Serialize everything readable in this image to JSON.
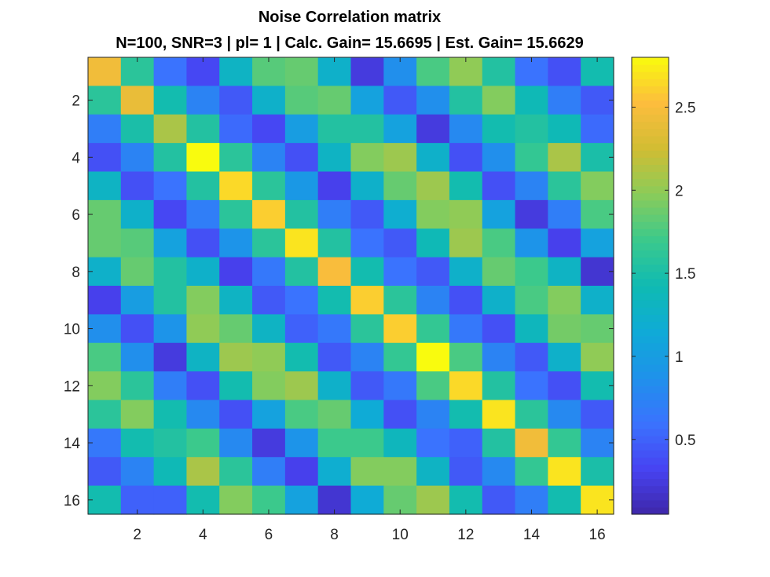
{
  "chart_data": {
    "type": "heatmap",
    "title": "Noise Correlation matrix",
    "subtitle": "N=100, SNR=3 | pl= 1 | Calc. Gain= 15.6695 | Est. Gain= 15.6629",
    "xlabel": "",
    "ylabel": "",
    "rows": 16,
    "cols": 16,
    "x_ticks": [
      "2",
      "4",
      "6",
      "8",
      "10",
      "12",
      "14",
      "16"
    ],
    "y_ticks": [
      "2",
      "4",
      "6",
      "8",
      "10",
      "12",
      "14",
      "16"
    ],
    "colorbar": {
      "range": [
        0.05,
        2.8
      ],
      "ticks": [
        "0.5",
        "1",
        "1.5",
        "2",
        "2.5"
      ],
      "colormap": "parula"
    },
    "values": [
      [
        2.45,
        1.6,
        0.6,
        0.35,
        1.3,
        1.8,
        1.85,
        1.25,
        0.25,
        0.85,
        1.75,
        2.0,
        1.55,
        0.6,
        0.4,
        1.45
      ],
      [
        1.6,
        2.4,
        1.45,
        0.75,
        0.45,
        1.25,
        1.8,
        1.85,
        1.05,
        0.45,
        0.85,
        1.55,
        1.95,
        1.4,
        0.7,
        0.45
      ],
      [
        0.7,
        1.5,
        2.1,
        1.55,
        0.55,
        0.35,
        1.0,
        1.55,
        1.55,
        1.05,
        0.25,
        0.8,
        1.45,
        1.55,
        1.4,
        0.55
      ],
      [
        0.4,
        0.75,
        1.55,
        2.8,
        1.6,
        0.75,
        0.4,
        1.3,
        1.95,
        2.05,
        1.25,
        0.4,
        0.85,
        1.65,
        2.1,
        1.5
      ],
      [
        1.3,
        0.4,
        0.6,
        1.55,
        2.65,
        1.6,
        0.95,
        0.3,
        1.25,
        1.85,
        2.05,
        1.45,
        0.4,
        0.75,
        1.6,
        1.95
      ],
      [
        1.85,
        1.25,
        0.35,
        0.7,
        1.6,
        2.6,
        1.55,
        0.7,
        0.45,
        1.2,
        1.95,
        2.0,
        1.05,
        0.25,
        0.7,
        1.75
      ],
      [
        1.85,
        1.8,
        1.05,
        0.4,
        0.9,
        1.6,
        2.7,
        1.55,
        0.6,
        0.45,
        1.4,
        2.05,
        1.75,
        0.9,
        0.3,
        1.05
      ],
      [
        1.25,
        1.85,
        1.55,
        1.25,
        0.3,
        0.65,
        1.55,
        2.5,
        1.45,
        0.6,
        0.45,
        1.25,
        1.85,
        1.7,
        1.3,
        0.2
      ],
      [
        0.3,
        1.0,
        1.55,
        1.95,
        1.3,
        0.45,
        0.6,
        1.45,
        2.6,
        1.6,
        0.75,
        0.4,
        1.25,
        1.75,
        1.95,
        1.25
      ],
      [
        0.85,
        0.4,
        0.9,
        2.0,
        1.85,
        1.3,
        0.5,
        0.65,
        1.6,
        2.6,
        1.65,
        0.65,
        0.4,
        1.35,
        1.9,
        1.85
      ],
      [
        1.75,
        0.85,
        0.25,
        1.3,
        2.05,
        2.0,
        1.45,
        0.45,
        0.75,
        1.65,
        2.8,
        1.75,
        0.75,
        0.45,
        1.25,
        2.0
      ],
      [
        1.95,
        1.6,
        0.7,
        0.4,
        1.45,
        1.95,
        2.05,
        1.25,
        0.45,
        0.65,
        1.75,
        2.65,
        1.55,
        0.6,
        0.4,
        1.45
      ],
      [
        1.6,
        1.95,
        1.45,
        0.8,
        0.4,
        1.05,
        1.75,
        1.85,
        1.15,
        0.4,
        0.75,
        1.45,
        2.7,
        1.6,
        0.8,
        0.45
      ],
      [
        0.65,
        1.45,
        1.55,
        1.7,
        0.8,
        0.25,
        0.9,
        1.7,
        1.7,
        1.35,
        0.6,
        0.5,
        1.55,
        2.45,
        1.65,
        0.75
      ],
      [
        0.45,
        0.75,
        1.4,
        2.1,
        1.6,
        0.7,
        0.3,
        1.2,
        1.95,
        1.95,
        1.3,
        0.45,
        0.8,
        1.65,
        2.7,
        1.5
      ],
      [
        1.45,
        0.5,
        0.5,
        1.45,
        1.95,
        1.7,
        1.05,
        0.2,
        1.15,
        1.85,
        2.05,
        1.45,
        0.45,
        0.7,
        1.45,
        2.7
      ]
    ]
  }
}
